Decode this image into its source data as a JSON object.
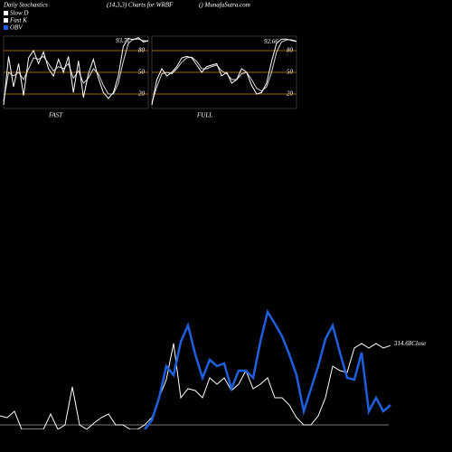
{
  "header": [
    "Daily Stochastics",
    "(14,3,3) Charts for WRBF",
    "() MunafaSutra.com"
  ],
  "chart_data": [
    {
      "type": "line",
      "title": "FAST",
      "ylim": [
        0,
        100
      ],
      "yticks": [
        20,
        50,
        80
      ],
      "level_color": "#c8860a",
      "series": [
        {
          "name": "Slow D",
          "color": "#d8d8d8",
          "values": [
            10,
            50,
            45,
            50,
            40,
            55,
            70,
            68,
            72,
            62,
            52,
            58,
            55,
            62,
            42,
            52,
            35,
            42,
            55,
            48,
            32,
            20,
            20,
            35,
            65,
            90,
            96,
            96,
            94,
            93
          ]
        },
        {
          "name": "Fast K",
          "color": "#ffffff",
          "values": [
            5,
            72,
            30,
            62,
            18,
            70,
            80,
            62,
            78,
            55,
            45,
            68,
            50,
            72,
            22,
            66,
            15,
            48,
            68,
            42,
            22,
            14,
            22,
            45,
            86,
            97,
            95,
            98,
            92,
            93.71
          ]
        }
      ]
    },
    {
      "type": "line",
      "title": "FULL",
      "ylim": [
        0,
        100
      ],
      "yticks": [
        20,
        50,
        80
      ],
      "level_color": "#c8860a",
      "series": [
        {
          "color": "#d8d8d8",
          "values": [
            8,
            30,
            48,
            50,
            48,
            55,
            64,
            70,
            71,
            65,
            55,
            55,
            58,
            60,
            52,
            48,
            40,
            40,
            48,
            50,
            40,
            28,
            24,
            30,
            50,
            78,
            92,
            95,
            95,
            93
          ]
        },
        {
          "color": "#ffffff",
          "values": [
            5,
            40,
            55,
            45,
            50,
            58,
            70,
            72,
            70,
            60,
            50,
            58,
            60,
            62,
            45,
            50,
            35,
            40,
            55,
            50,
            32,
            20,
            22,
            35,
            65,
            90,
            96,
            96,
            94,
            92.66
          ]
        }
      ]
    },
    {
      "type": "line",
      "ylim": [
        300,
        323.4
      ],
      "y2lim": [
        0,
        100
      ],
      "series": [
        {
          "name": "Close",
          "color": "#ffffff",
          "values": [
            301.67,
            301.34,
            302.51,
            299.16,
            299.16,
            299.16,
            299.16,
            302.01,
            299.16,
            300,
            307.02,
            300,
            299.16,
            300.33,
            301.34,
            302.01,
            300,
            300,
            299.16,
            299.16,
            300,
            301.34,
            305.01,
            308.36,
            315.04,
            305.01,
            306.69,
            306.35,
            305.01,
            308.69,
            307.52,
            308.69,
            306.35,
            307.52,
            310.03,
            306.69,
            307.52,
            308.69,
            305.01,
            305.01,
            303.68,
            301.34,
            300,
            300,
            301.67,
            305.01,
            310.86,
            310.03,
            309.69,
            314.21,
            315.04,
            314.21,
            315.04,
            314.21,
            314.68
          ]
        },
        {
          "name": "OBV",
          "color": "#1e5fe0",
          "axis": "y2",
          "values": [
            null,
            null,
            null,
            null,
            null,
            null,
            null,
            null,
            null,
            null,
            null,
            null,
            null,
            null,
            null,
            null,
            null,
            null,
            null,
            null,
            -3.57,
            3.57,
            21.43,
            46.43,
            39.29,
            65.71,
            78.57,
            55.71,
            37.14,
            51.43,
            46.43,
            48.57,
            28.57,
            42.86,
            42.86,
            37.14,
            65.71,
            89.29,
            80,
            70,
            55.71,
            39.29,
            10.71,
            28.57,
            46.43,
            67.86,
            78.57,
            57.14,
            37.14,
            35.71,
            57.14,
            10.71,
            21.43,
            10.71,
            15.71
          ]
        }
      ]
    }
  ]
}
